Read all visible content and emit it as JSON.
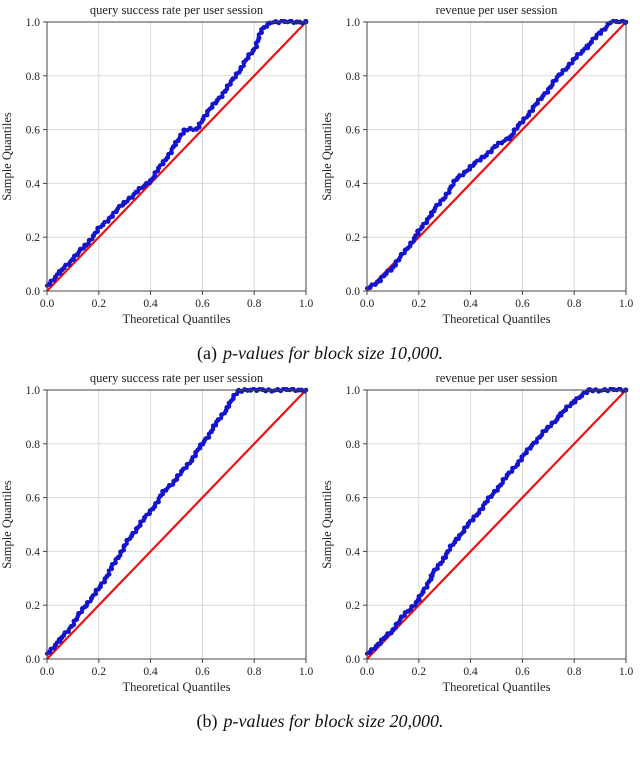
{
  "page": {
    "background": "#ffffff"
  },
  "style": {
    "dot_color": "#1414cc",
    "line_color": "#ee1111",
    "grid_color": "#d9d9d9",
    "box_color": "#444444",
    "text_color": "#222222"
  },
  "captions": {
    "a_label": "(a)",
    "a_text": "p-values for block size 10,000.",
    "b_label": "(b)",
    "b_text": "p-values for block size 20,000."
  },
  "chart_data": [
    {
      "type": "scatter",
      "group": "block size 10,000",
      "title": "query success rate per user session",
      "xlabel": "Theoretical Quantiles",
      "ylabel": "Sample Quantiles",
      "xlim": [
        0,
        1
      ],
      "ylim": [
        0,
        1
      ],
      "ticks": [
        0.0,
        0.2,
        0.4,
        0.6,
        0.8,
        1.0
      ],
      "grid": true,
      "reference_line": {
        "from": [
          0,
          0
        ],
        "to": [
          1,
          1
        ]
      },
      "series": [
        {
          "name": "sample-vs-theoretical-quantiles",
          "points": [
            [
              0.0,
              0.02
            ],
            [
              0.05,
              0.07
            ],
            [
              0.1,
              0.12
            ],
            [
              0.15,
              0.17
            ],
            [
              0.2,
              0.23
            ],
            [
              0.25,
              0.28
            ],
            [
              0.3,
              0.33
            ],
            [
              0.35,
              0.37
            ],
            [
              0.4,
              0.41
            ],
            [
              0.45,
              0.48
            ],
            [
              0.5,
              0.55
            ],
            [
              0.53,
              0.6
            ],
            [
              0.58,
              0.6
            ],
            [
              0.6,
              0.64
            ],
            [
              0.65,
              0.7
            ],
            [
              0.7,
              0.76
            ],
            [
              0.75,
              0.83
            ],
            [
              0.8,
              0.9
            ],
            [
              0.83,
              0.97
            ],
            [
              0.86,
              1.0
            ],
            [
              1.0,
              1.0
            ]
          ]
        }
      ]
    },
    {
      "type": "scatter",
      "group": "block size 10,000",
      "title": "revenue per user session",
      "xlabel": "Theoretical Quantiles",
      "ylabel": "Sample Quantiles",
      "xlim": [
        0,
        1
      ],
      "ylim": [
        0,
        1
      ],
      "ticks": [
        0.0,
        0.2,
        0.4,
        0.6,
        0.8,
        1.0
      ],
      "grid": true,
      "reference_line": {
        "from": [
          0,
          0
        ],
        "to": [
          1,
          1
        ]
      },
      "series": [
        {
          "name": "sample-vs-theoretical-quantiles",
          "points": [
            [
              0.0,
              0.01
            ],
            [
              0.05,
              0.04
            ],
            [
              0.1,
              0.09
            ],
            [
              0.15,
              0.15
            ],
            [
              0.2,
              0.22
            ],
            [
              0.25,
              0.29
            ],
            [
              0.3,
              0.35
            ],
            [
              0.35,
              0.42
            ],
            [
              0.4,
              0.46
            ],
            [
              0.45,
              0.5
            ],
            [
              0.5,
              0.54
            ],
            [
              0.55,
              0.57
            ],
            [
              0.6,
              0.63
            ],
            [
              0.65,
              0.69
            ],
            [
              0.7,
              0.75
            ],
            [
              0.75,
              0.81
            ],
            [
              0.8,
              0.86
            ],
            [
              0.85,
              0.91
            ],
            [
              0.9,
              0.96
            ],
            [
              0.94,
              1.0
            ],
            [
              1.0,
              1.0
            ]
          ]
        }
      ]
    },
    {
      "type": "scatter",
      "group": "block size 20,000",
      "title": "query success rate per user session",
      "xlabel": "Theoretical Quantiles",
      "ylabel": "Sample Quantiles",
      "xlim": [
        0,
        1
      ],
      "ylim": [
        0,
        1
      ],
      "ticks": [
        0.0,
        0.2,
        0.4,
        0.6,
        0.8,
        1.0
      ],
      "grid": true,
      "reference_line": {
        "from": [
          0,
          0
        ],
        "to": [
          1,
          1
        ]
      },
      "series": [
        {
          "name": "sample-vs-theoretical-quantiles",
          "points": [
            [
              0.0,
              0.02
            ],
            [
              0.05,
              0.07
            ],
            [
              0.1,
              0.13
            ],
            [
              0.15,
              0.2
            ],
            [
              0.2,
              0.26
            ],
            [
              0.25,
              0.34
            ],
            [
              0.3,
              0.42
            ],
            [
              0.35,
              0.49
            ],
            [
              0.4,
              0.55
            ],
            [
              0.45,
              0.62
            ],
            [
              0.5,
              0.67
            ],
            [
              0.55,
              0.73
            ],
            [
              0.6,
              0.8
            ],
            [
              0.65,
              0.87
            ],
            [
              0.7,
              0.94
            ],
            [
              0.74,
              1.0
            ],
            [
              1.0,
              1.0
            ]
          ]
        }
      ]
    },
    {
      "type": "scatter",
      "group": "block size 20,000",
      "title": "revenue per user session",
      "xlabel": "Theoretical Quantiles",
      "ylabel": "Sample Quantiles",
      "xlim": [
        0,
        1
      ],
      "ylim": [
        0,
        1
      ],
      "ticks": [
        0.0,
        0.2,
        0.4,
        0.6,
        0.8,
        1.0
      ],
      "grid": true,
      "reference_line": {
        "from": [
          0,
          0
        ],
        "to": [
          1,
          1
        ]
      },
      "series": [
        {
          "name": "sample-vs-theoretical-quantiles",
          "points": [
            [
              0.0,
              0.02
            ],
            [
              0.05,
              0.06
            ],
            [
              0.1,
              0.11
            ],
            [
              0.15,
              0.17
            ],
            [
              0.2,
              0.22
            ],
            [
              0.25,
              0.31
            ],
            [
              0.3,
              0.38
            ],
            [
              0.35,
              0.45
            ],
            [
              0.4,
              0.51
            ],
            [
              0.45,
              0.57
            ],
            [
              0.5,
              0.63
            ],
            [
              0.55,
              0.69
            ],
            [
              0.6,
              0.75
            ],
            [
              0.65,
              0.81
            ],
            [
              0.7,
              0.86
            ],
            [
              0.75,
              0.91
            ],
            [
              0.8,
              0.96
            ],
            [
              0.86,
              1.0
            ],
            [
              1.0,
              1.0
            ]
          ]
        }
      ]
    }
  ]
}
